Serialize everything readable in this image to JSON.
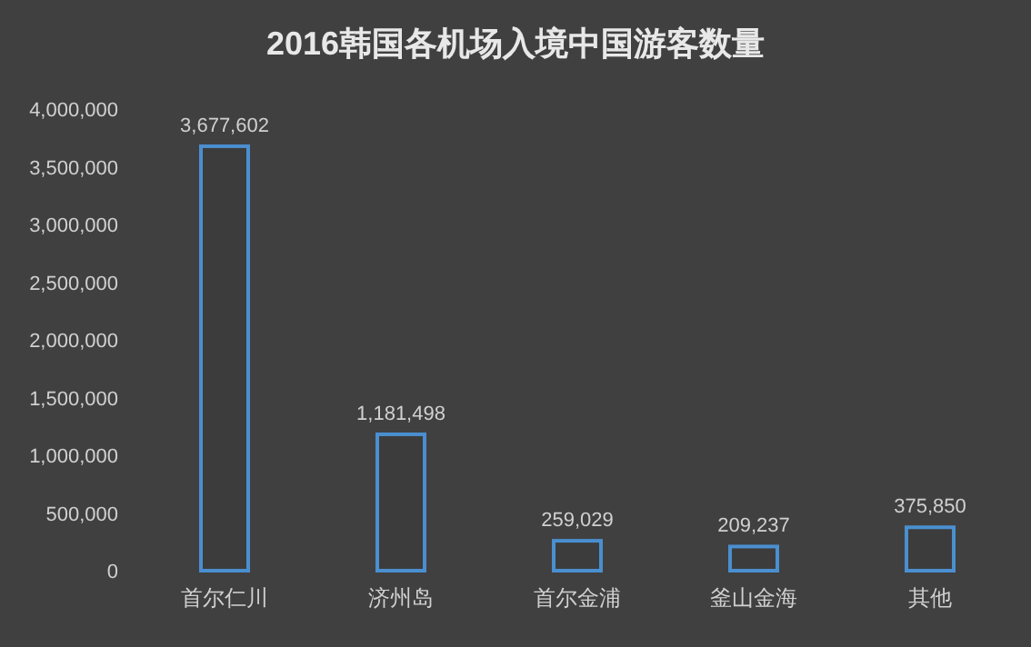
{
  "chart_data": {
    "type": "bar",
    "title": "2016韩国各机场入境中国游客数量",
    "categories": [
      "首尔仁川",
      "济州岛",
      "首尔金浦",
      "釜山金海",
      "其他"
    ],
    "values": [
      3677602,
      1181498,
      259029,
      209237,
      375850
    ],
    "color": "#4a8fd0",
    "ylim": [
      0,
      4000000
    ],
    "yticks": [
      {
        "value": 0,
        "label": "0"
      },
      {
        "value": 500000,
        "label": "500,000"
      },
      {
        "value": 1000000,
        "label": "1,000,000"
      },
      {
        "value": 1500000,
        "label": "1,500,000"
      },
      {
        "value": 2000000,
        "label": "2,000,000"
      },
      {
        "value": 2500000,
        "label": "2,500,000"
      },
      {
        "value": 3000000,
        "label": "3,000,000"
      },
      {
        "value": 3500000,
        "label": "3,500,000"
      },
      {
        "value": 4000000,
        "label": "4,000,000"
      }
    ],
    "value_labels": [
      "3,677,602",
      "1,181,498",
      "259,029",
      "209,237",
      "375,850"
    ]
  }
}
